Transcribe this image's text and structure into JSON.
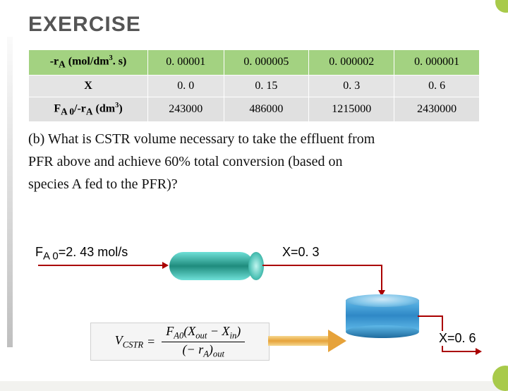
{
  "title": "EXERCISE",
  "table": {
    "header": {
      "c0": "-r",
      "c0sub": "A",
      "c0unit": " (mol/dm",
      "c0supinner": "3",
      "c0rest": ". s)",
      "c1": "0. 00001",
      "c2": "0. 000005",
      "c3": "0. 000002",
      "c4": "0. 000001"
    },
    "row2": {
      "c0": "X",
      "c1": "0. 0",
      "c2": "0. 15",
      "c3": "0. 3",
      "c4": "0. 6"
    },
    "row3": {
      "c0a": "F",
      "c0asub": "A 0",
      "c0mid": "/-r",
      "c0sub2": "A",
      "c0unit": " (dm",
      "c0sup": "3",
      "c0end": ")",
      "c1": "243000",
      "c2": "486000",
      "c3": "1215000",
      "c4": "2430000"
    }
  },
  "question": {
    "line1": "(b) What is CSTR volume necessary to take the effluent from",
    "line2": "PFR above and achieve 60% total conversion (based on",
    "line3": "species A fed to the PFR)?"
  },
  "diagram": {
    "fa0_prefix": "F",
    "fa0_sub": "A 0",
    "fa0_rest": "=2. 43 mol/s",
    "x03": "X=0. 3",
    "x06": "X=0. 6"
  },
  "formula": {
    "lhs_v": "V",
    "lhs_sub": "CSTR",
    "eq": "=",
    "num_a": "F",
    "num_asub": "A0",
    "num_b": "(X",
    "num_bsub": "out",
    "num_c": " − X",
    "num_csub": "in",
    "num_d": ")",
    "den_a": "(− r",
    "den_asub": "A",
    "den_b": ")",
    "den_bsub": "out"
  }
}
